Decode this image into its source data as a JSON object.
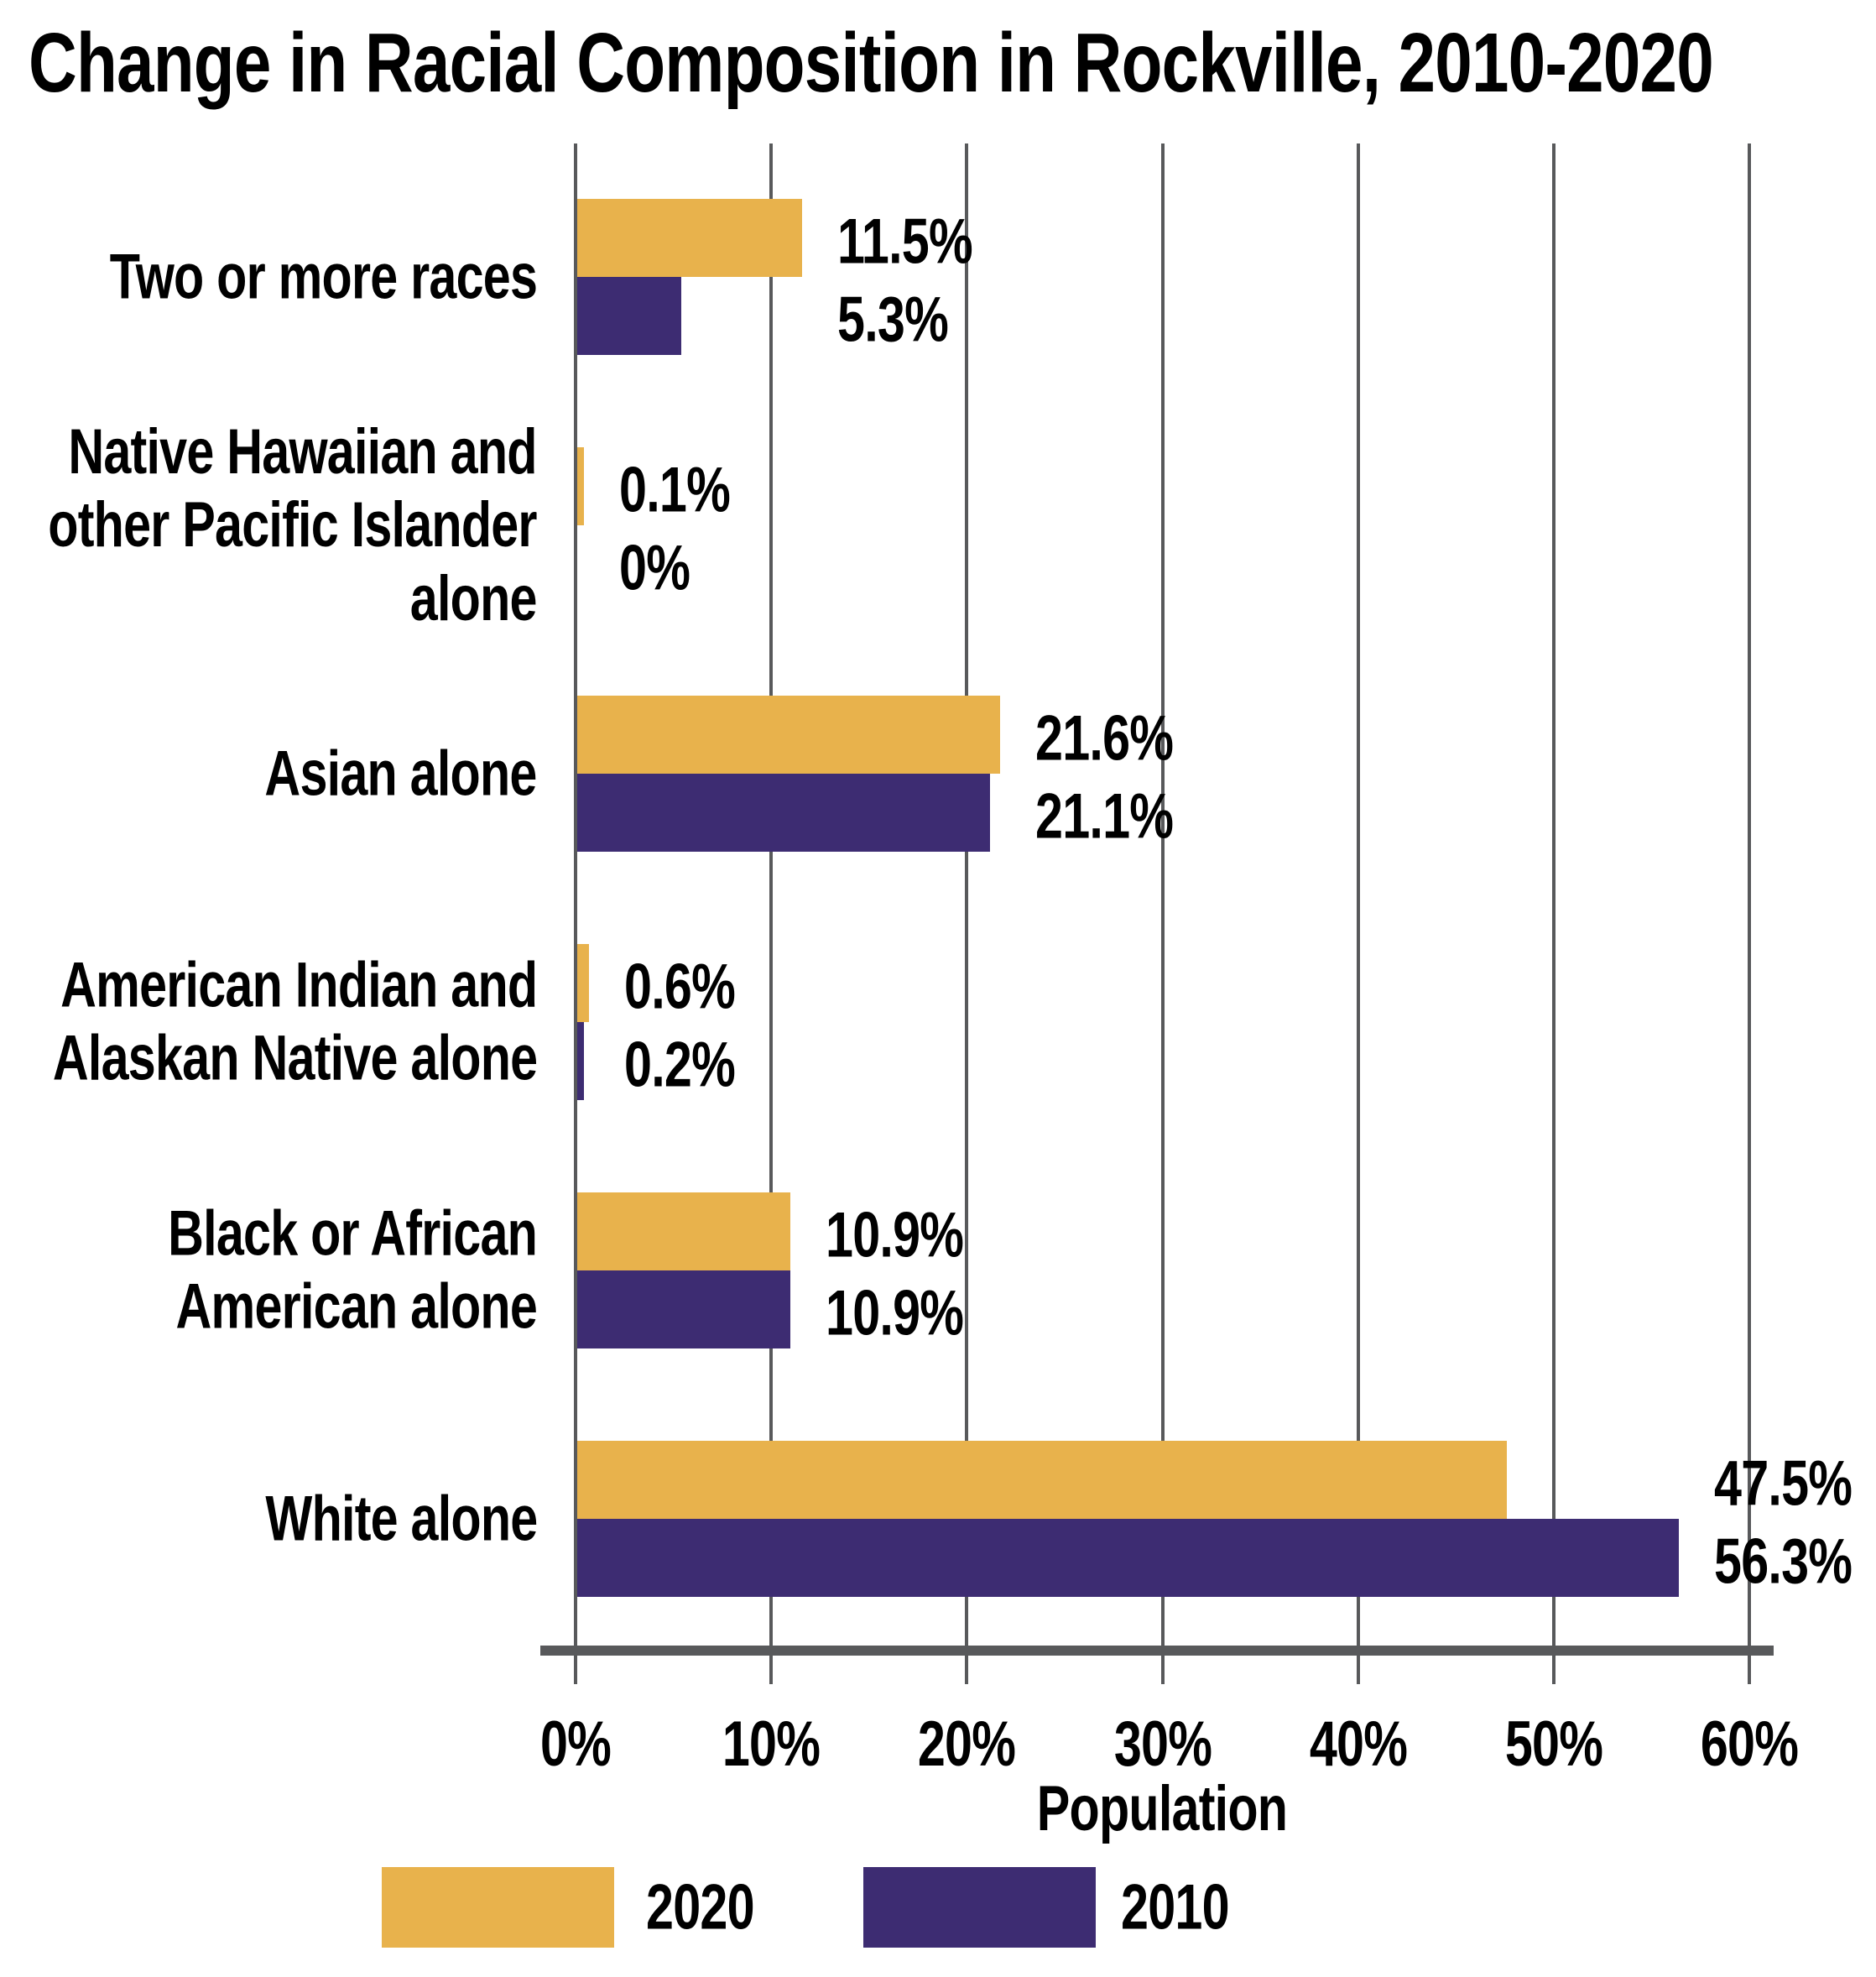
{
  "chart_data": {
    "type": "bar",
    "orientation": "horizontal",
    "title": "Change in Racial Composition in Rockville, 2010-2020",
    "xlabel": "Population",
    "x_ticks": [
      "0%",
      "10%",
      "20%",
      "30%",
      "40%",
      "50%",
      "60%"
    ],
    "x_range_pct": [
      0,
      60
    ],
    "grid": true,
    "legend_position": "bottom",
    "background": "#FFFFFF",
    "grid_color": "#58595B",
    "axis_color": "#58595B",
    "text_color": "#000000",
    "categories": [
      {
        "id": "two-or-more-races",
        "label_lines": [
          "Two or more races"
        ]
      },
      {
        "id": "native-hawaiian-pacific-islander-alone",
        "label_lines": [
          "Native Hawaiian and",
          "other Pacific Islander",
          "alone"
        ]
      },
      {
        "id": "asian-alone",
        "label_lines": [
          "Asian alone"
        ]
      },
      {
        "id": "american-indian-alaskan-native-alone",
        "label_lines": [
          "American Indian and",
          "Alaskan Native alone"
        ]
      },
      {
        "id": "black-or-african-american-alone",
        "label_lines": [
          "Black or African",
          "American alone"
        ]
      },
      {
        "id": "white-alone",
        "label_lines": [
          "White alone"
        ]
      }
    ],
    "series": [
      {
        "name": "2020",
        "color": "#E8B24C",
        "values": [
          11.5,
          0.1,
          21.6,
          0.6,
          10.9,
          47.5
        ],
        "value_labels": [
          "11.5%",
          "0.1%",
          "21.6%",
          "0.6%",
          "10.9%",
          "47.5%"
        ]
      },
      {
        "name": "2010",
        "color": "#3D2C72",
        "values": [
          5.3,
          0,
          21.1,
          0.2,
          10.9,
          56.3
        ],
        "value_labels": [
          "5.3%",
          "0%",
          "21.1%",
          "0.2%",
          "10.9%",
          "56.3%"
        ]
      }
    ]
  }
}
